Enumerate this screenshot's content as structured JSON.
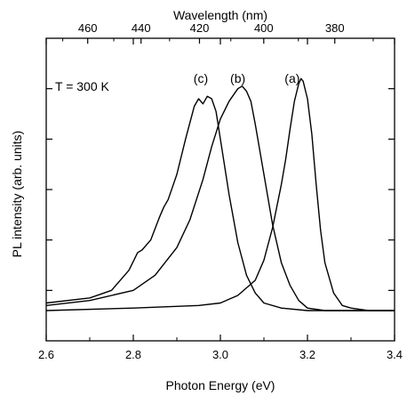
{
  "chart_data": {
    "type": "line",
    "xlabel": "Photon Energy (eV)",
    "ylabel": "PL intensity (arb. units)",
    "top_xlabel": "Wavelength (nm)",
    "xlim": [
      2.6,
      3.4
    ],
    "ylim": [
      0,
      1.2
    ],
    "x_ticks": [
      2.6,
      2.8,
      3.0,
      3.2,
      3.4
    ],
    "x_tick_labels": [
      "2.6",
      "2.8",
      "3.0",
      "3.2",
      "3.4"
    ],
    "top_ticks_nm": [
      460,
      440,
      420,
      400,
      380
    ],
    "top_tick_labels": [
      "460",
      "440",
      "420",
      "400",
      "380"
    ],
    "temperature_label": "T = 300 K",
    "grid": false,
    "series": [
      {
        "name": "(a)",
        "x": [
          2.6,
          2.8,
          2.95,
          3.0,
          3.04,
          3.08,
          3.1,
          3.12,
          3.14,
          3.15,
          3.16,
          3.17,
          3.18,
          3.185,
          3.19,
          3.2,
          3.21,
          3.22,
          3.23,
          3.24,
          3.26,
          3.28,
          3.3,
          3.34,
          3.4
        ],
        "y": [
          0.12,
          0.13,
          0.14,
          0.15,
          0.18,
          0.24,
          0.32,
          0.45,
          0.62,
          0.72,
          0.84,
          0.95,
          1.02,
          1.04,
          1.03,
          0.96,
          0.82,
          0.62,
          0.44,
          0.31,
          0.19,
          0.14,
          0.13,
          0.12,
          0.12
        ]
      },
      {
        "name": "(b)",
        "x": [
          2.6,
          2.7,
          2.8,
          2.85,
          2.9,
          2.93,
          2.96,
          2.98,
          3.0,
          3.02,
          3.04,
          3.05,
          3.06,
          3.07,
          3.08,
          3.1,
          3.12,
          3.14,
          3.16,
          3.18,
          3.2,
          3.24,
          3.3,
          3.4
        ],
        "y": [
          0.14,
          0.16,
          0.2,
          0.26,
          0.37,
          0.48,
          0.64,
          0.77,
          0.88,
          0.95,
          1.0,
          1.01,
          0.99,
          0.95,
          0.86,
          0.66,
          0.46,
          0.31,
          0.22,
          0.16,
          0.13,
          0.12,
          0.12,
          0.12
        ]
      },
      {
        "name": "(c)",
        "x": [
          2.6,
          2.7,
          2.75,
          2.79,
          2.81,
          2.82,
          2.84,
          2.86,
          2.87,
          2.88,
          2.9,
          2.92,
          2.94,
          2.95,
          2.96,
          2.97,
          2.98,
          2.99,
          3.0,
          3.02,
          3.04,
          3.06,
          3.08,
          3.1,
          3.14,
          3.2,
          3.3,
          3.4
        ],
        "y": [
          0.15,
          0.17,
          0.2,
          0.28,
          0.35,
          0.36,
          0.4,
          0.49,
          0.53,
          0.56,
          0.66,
          0.8,
          0.93,
          0.96,
          0.94,
          0.97,
          0.96,
          0.91,
          0.8,
          0.58,
          0.39,
          0.26,
          0.19,
          0.15,
          0.13,
          0.12,
          0.12,
          0.12
        ]
      }
    ],
    "curve_labels": [
      {
        "text": "(a)",
        "x": 3.165
      },
      {
        "text": "(b)",
        "x": 3.04
      },
      {
        "text": "(c)",
        "x": 2.955
      }
    ]
  }
}
